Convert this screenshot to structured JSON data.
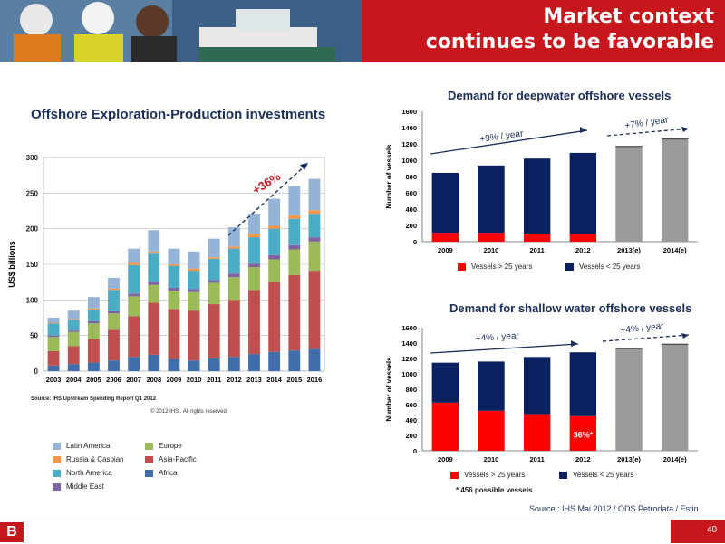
{
  "header": {
    "title_line1": "Market context",
    "title_line2": "continues to be favorable",
    "brand_color": "#c8161d"
  },
  "footer": {
    "page_number": "40",
    "logo_letter": "B"
  },
  "chart_data": [
    {
      "type": "bar",
      "stacked": true,
      "title": "Offshore Exploration-Production investments",
      "ylabel": "US$ billions",
      "xlabel": "",
      "ylim": [
        0,
        300
      ],
      "yticks": [
        0,
        50,
        100,
        150,
        200,
        250,
        300
      ],
      "categories": [
        "2003",
        "2004",
        "2005",
        "2006",
        "2007",
        "2008",
        "2009",
        "2010",
        "2011",
        "2012",
        "2013",
        "2014",
        "2015",
        "2016"
      ],
      "series": [
        {
          "name": "Africa",
          "color": "#3f6eaa",
          "values": [
            8,
            10,
            12,
            15,
            20,
            23,
            17,
            15,
            18,
            20,
            24,
            27,
            29,
            31
          ]
        },
        {
          "name": "Asia-Pacific",
          "color": "#c0504d",
          "values": [
            20,
            25,
            33,
            43,
            57,
            73,
            70,
            70,
            76,
            80,
            90,
            98,
            106,
            110
          ]
        },
        {
          "name": "Europe",
          "color": "#9bbb59",
          "values": [
            20,
            20,
            22,
            23,
            28,
            25,
            26,
            26,
            30,
            32,
            32,
            32,
            36,
            41
          ]
        },
        {
          "name": "Middle East",
          "color": "#8064a2",
          "values": [
            2,
            2,
            3,
            3,
            4,
            4,
            4,
            4,
            4,
            5,
            5,
            6,
            6,
            6
          ]
        },
        {
          "name": "North America",
          "color": "#4bacc6",
          "values": [
            17,
            15,
            16,
            30,
            40,
            40,
            31,
            26,
            30,
            35,
            37,
            37,
            37,
            33
          ]
        },
        {
          "name": "Russia & Caspian",
          "color": "#f79646",
          "values": [
            1,
            1,
            2,
            2,
            3,
            3,
            2,
            3,
            2,
            3,
            4,
            4,
            5,
            5
          ]
        },
        {
          "name": "Latin America",
          "color": "#95b3d7",
          "values": [
            7,
            12,
            16,
            15,
            20,
            30,
            22,
            24,
            26,
            27,
            29,
            38,
            41,
            44
          ]
        }
      ],
      "annotations": [
        "+36%"
      ],
      "source": "Source: IHS Upstream Spending Report Q1 2012",
      "copyright": "© 2012 IHS . All rights reserved",
      "grid": true,
      "legend_placement": "bottom"
    },
    {
      "type": "bar",
      "stacked": true,
      "title": "Demand for deepwater offshore vessels",
      "ylabel": "Number of vessels",
      "ylim": [
        0,
        1600
      ],
      "yticks": [
        0,
        200,
        400,
        600,
        800,
        1000,
        1200,
        1400,
        1600
      ],
      "categories": [
        "2009",
        "2010",
        "2011",
        "2012",
        "2013(e)",
        "2014(e)"
      ],
      "series": [
        {
          "name": "Vessels > 25 years",
          "color": "#ff0000",
          "values": [
            110,
            110,
            100,
            95,
            null,
            null
          ]
        },
        {
          "name": "Vessels < 25 years",
          "color": "#0a2160",
          "values": [
            735,
            825,
            920,
            995,
            null,
            null
          ]
        }
      ],
      "estimates": [
        1170,
        1260
      ],
      "annotations": [
        "+9% / year",
        "+7% / year"
      ],
      "legend_placement": "bottom"
    },
    {
      "type": "bar",
      "stacked": true,
      "title": "Demand for shallow water offshore vessels",
      "ylabel": "Number of vessels",
      "ylim": [
        0,
        1600
      ],
      "yticks": [
        0,
        200,
        400,
        600,
        800,
        1000,
        1200,
        1400,
        1600
      ],
      "categories": [
        "2009",
        "2010",
        "2011",
        "2012",
        "2013(e)",
        "2014(e)"
      ],
      "series": [
        {
          "name": "Vessels > 25 years",
          "color": "#ff0000",
          "values": [
            625,
            520,
            475,
            450,
            null,
            null
          ]
        },
        {
          "name": "Vessels < 25 years",
          "color": "#0a2160",
          "values": [
            520,
            640,
            745,
            830,
            null,
            null
          ]
        }
      ],
      "estimates": [
        1330,
        1385
      ],
      "annotations": [
        "+4% / year",
        "+4% / year",
        "36%*"
      ],
      "note": "* 456 possible vessels",
      "legend_placement": "bottom"
    }
  ],
  "source_right": "Source : IHS Mai 2012 / ODS Petrodata / Estin"
}
